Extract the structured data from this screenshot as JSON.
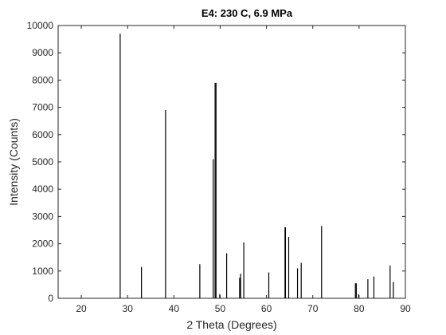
{
  "chart_data": {
    "type": "bar",
    "title": "E4: 230 C, 6.9 MPa",
    "xlabel": "2 Theta (Degrees)",
    "ylabel": "Intensity (Counts)",
    "xlim": [
      15,
      90
    ],
    "ylim": [
      0,
      10000
    ],
    "xticks": [
      20,
      30,
      40,
      50,
      60,
      70,
      80,
      90
    ],
    "yticks": [
      0,
      1000,
      2000,
      3000,
      4000,
      5000,
      6000,
      7000,
      8000,
      9000,
      10000
    ],
    "grid": false,
    "bar_color": "#000000",
    "x": [
      28.4,
      33.0,
      38.2,
      45.6,
      48.5,
      48.9,
      49.1,
      49.9,
      51.4,
      54.2,
      54.4,
      55.1,
      60.5,
      64.0,
      64.1,
      64.8,
      66.7,
      67.5,
      71.9,
      79.2,
      79.4,
      79.9,
      81.9,
      83.2,
      86.7,
      87.4
    ],
    "y": [
      9700,
      1150,
      6900,
      1250,
      5100,
      7900,
      7900,
      150,
      1650,
      750,
      900,
      2050,
      950,
      2600,
      2600,
      2250,
      1100,
      1300,
      2650,
      550,
      550,
      150,
      700,
      800,
      1200,
      600
    ]
  }
}
